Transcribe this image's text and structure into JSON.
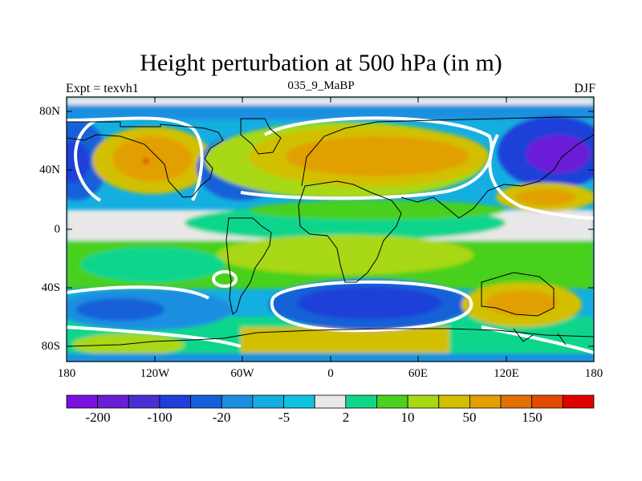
{
  "title": "Height perturbation at 500 hPa (in m)",
  "subtitle_left": "Expt = texvh1",
  "subtitle_center": "035_9_MaBP",
  "subtitle_right": "DJF",
  "lat_labels": [
    "80N",
    "40N",
    "0",
    "40S",
    "80S"
  ],
  "lon_labels": [
    "180",
    "120W",
    "60W",
    "0",
    "60E",
    "120E",
    "180"
  ],
  "colorbar": {
    "colors": [
      "#7a10e0",
      "#6a1ed6",
      "#4a2ed4",
      "#1e3fd8",
      "#1460d8",
      "#1a8fe0",
      "#15aee0",
      "#10c3e0",
      "#e8e8e8",
      "#10d68c",
      "#4ad01e",
      "#a8d812",
      "#d2c000",
      "#e2a000",
      "#e27000",
      "#e24a00",
      "#e00000"
    ],
    "tick_labels": [
      "-200",
      "-100",
      "-20",
      "-5",
      "2",
      "10",
      "50",
      "150"
    ]
  },
  "colors": {
    "frame": "#000000",
    "contour_line": "#ffffff"
  }
}
